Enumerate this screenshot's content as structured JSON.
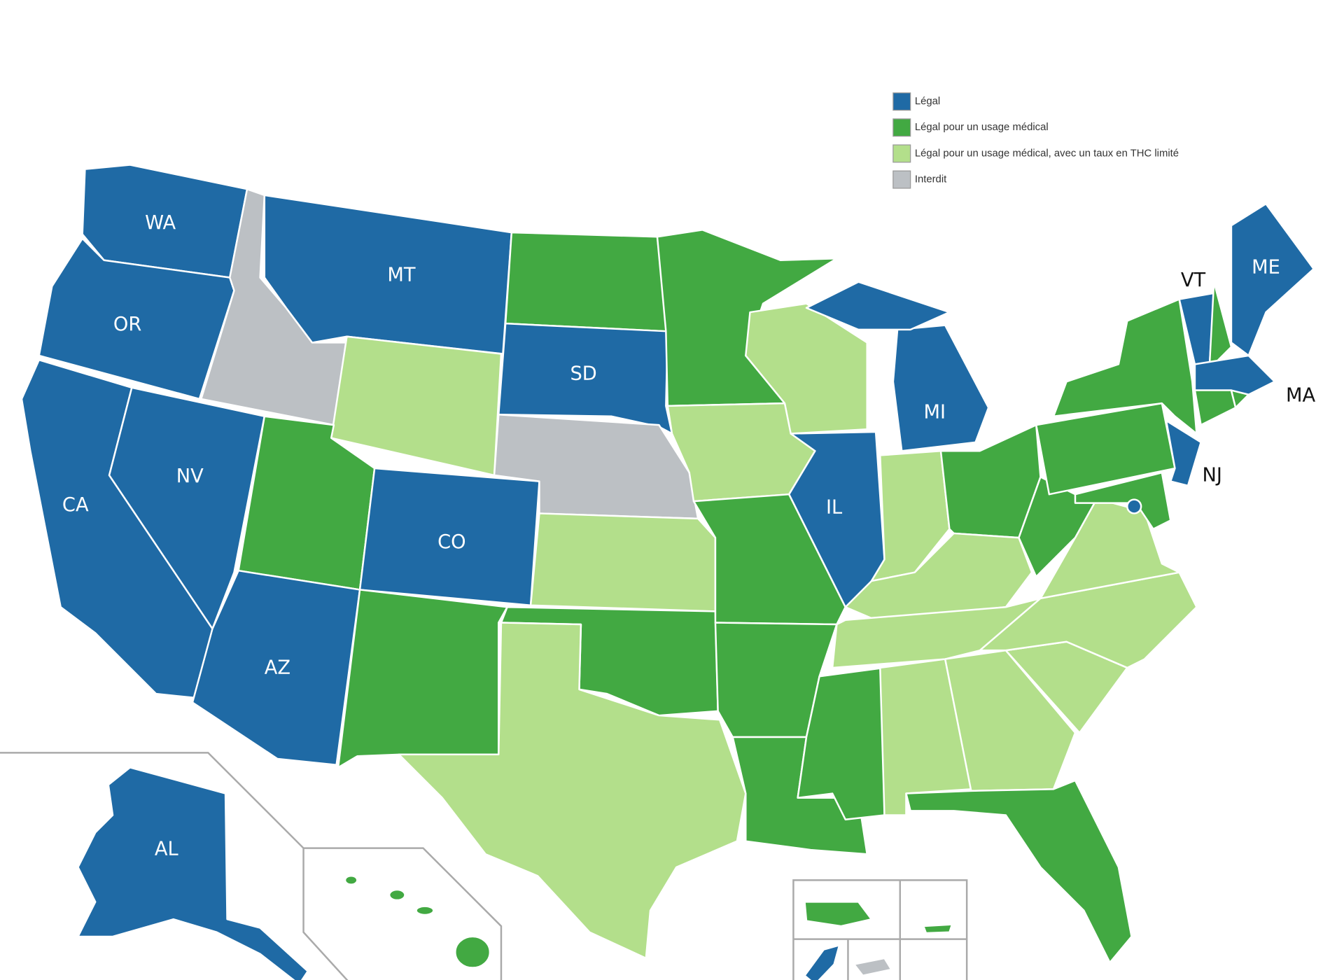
{
  "legend": {
    "items": [
      {
        "label": "Légal",
        "color": "#1f6aa5"
      },
      {
        "label": "Légal pour un usage médical",
        "color": "#42a942"
      },
      {
        "label": "Légal pour un usage médical, avec un taux en THC limité",
        "color": "#b3df8b"
      },
      {
        "label": "Interdit",
        "color": "#bcc0c4"
      }
    ]
  },
  "state_labels": [
    "WA",
    "OR",
    "CA",
    "NV",
    "MT",
    "SD",
    "CO",
    "AZ",
    "IL",
    "MI",
    "ME",
    "VT",
    "MA",
    "NJ",
    "AL"
  ]
}
